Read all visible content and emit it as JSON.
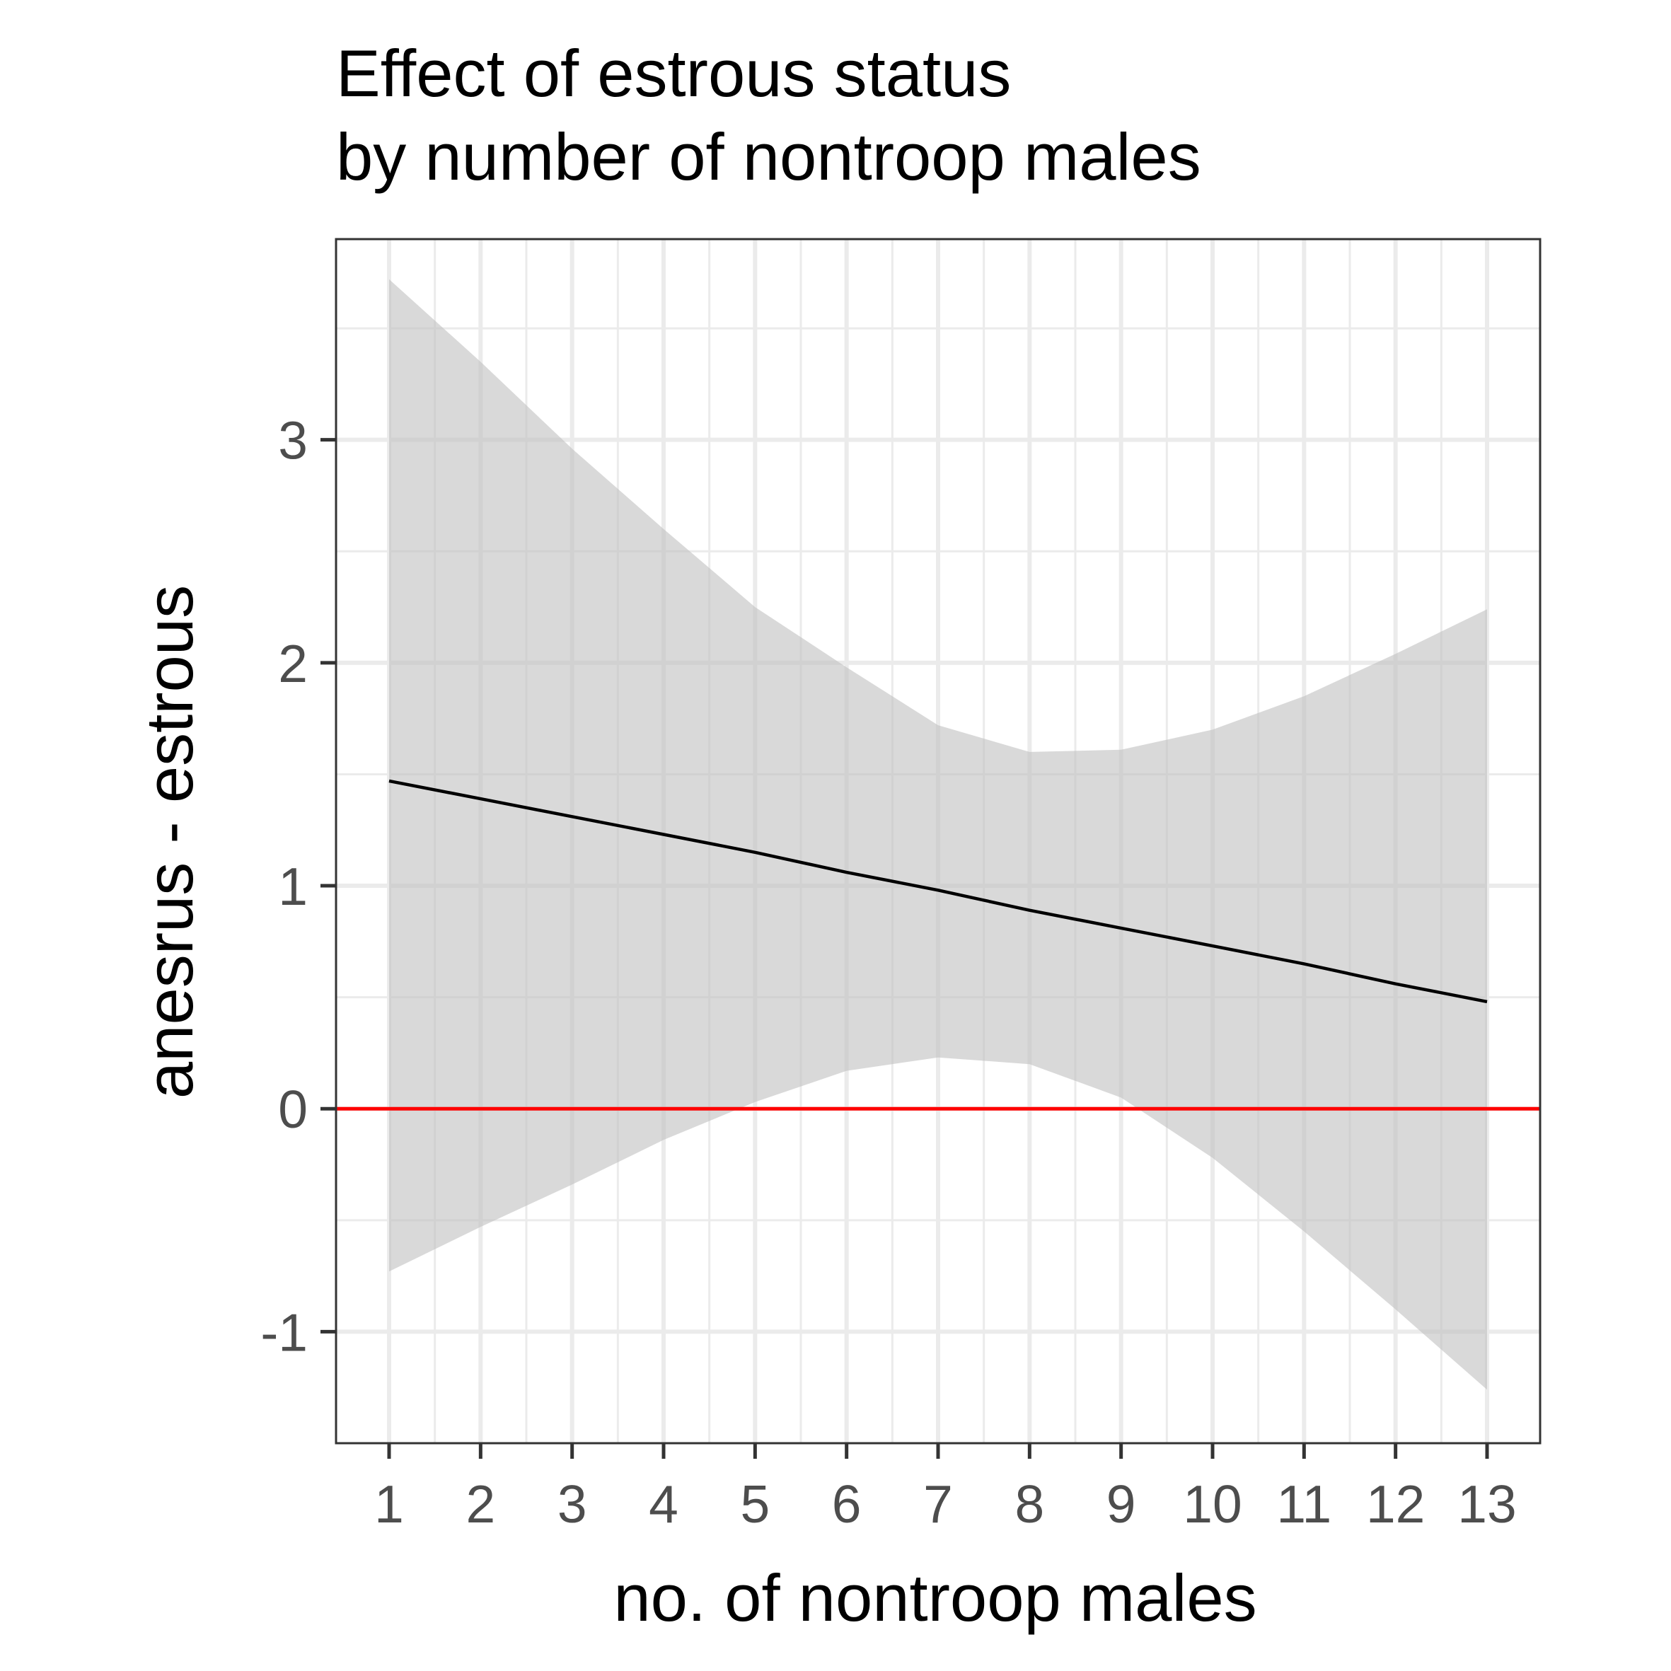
{
  "chart_data": {
    "type": "line",
    "title": [
      "Effect of estrous status",
      "by number of nontroop males"
    ],
    "xlabel": "no. of nontroop males",
    "ylabel": "anesrus - estrous",
    "xlim": [
      0.42,
      13.58
    ],
    "ylim": [
      -1.5,
      3.9
    ],
    "x_ticks": [
      1,
      2,
      3,
      4,
      5,
      6,
      7,
      8,
      9,
      10,
      11,
      12,
      13
    ],
    "x_tick_labels": [
      "1",
      "2",
      "3",
      "4",
      "5",
      "6",
      "7",
      "8",
      "9",
      "10",
      "11",
      "12",
      "13"
    ],
    "y_ticks": [
      -1,
      0,
      1,
      2,
      3
    ],
    "y_tick_labels": [
      "-1",
      "0",
      "1",
      "2",
      "3"
    ],
    "grid": true,
    "series": [
      {
        "line_color": "#000000",
        "x": [
          1,
          2,
          3,
          4,
          5,
          6,
          7,
          8,
          9,
          10,
          11,
          12,
          13
        ],
        "y": [
          1.47,
          1.39,
          1.31,
          1.23,
          1.15,
          1.06,
          0.98,
          0.89,
          0.81,
          0.73,
          0.65,
          0.56,
          0.48
        ],
        "ribbon_color": "#bfbfbf",
        "ribbon_opacity": 0.6,
        "ribbon_lower": [
          -0.73,
          -0.53,
          -0.34,
          -0.14,
          0.03,
          0.17,
          0.23,
          0.2,
          0.05,
          -0.22,
          -0.55,
          -0.9,
          -1.26
        ],
        "ribbon_upper": [
          3.72,
          3.35,
          2.96,
          2.6,
          2.25,
          1.98,
          1.72,
          1.6,
          1.61,
          1.7,
          1.85,
          2.04,
          2.24
        ]
      }
    ],
    "reference_line": {
      "y": 0,
      "color": "#ff0000"
    }
  }
}
